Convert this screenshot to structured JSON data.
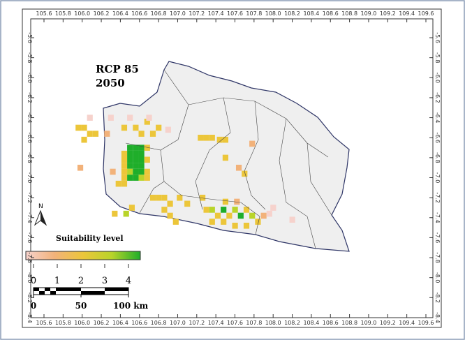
{
  "map": {
    "title": "RCP 85",
    "subtitle": "2050",
    "xticks": [
      105.6,
      105.8,
      {
        "value": 106,
        "label": "106.0"
      },
      106.2,
      106.4,
      106.6,
      106.8,
      {
        "value": 107,
        "label": "107.0"
      },
      107.2,
      107.4,
      107.6,
      107.8,
      {
        "value": 108,
        "label": "108.0"
      },
      108.2,
      108.4,
      108.6,
      108.8,
      {
        "value": 109,
        "label": "109.0"
      },
      109.2,
      109.4,
      109.6
    ],
    "yticks": [
      -5.6,
      -5.8,
      {
        "value": -6,
        "label": "-6.0"
      },
      -6.2,
      -6.4,
      -6.6,
      -6.8,
      {
        "value": -7,
        "label": "-7.0"
      },
      -7.2,
      -7.4,
      -7.6,
      -7.8,
      {
        "value": -8,
        "label": "-8.0"
      },
      -8.2,
      -8.4
    ],
    "cells": [
      [
        106.5,
        -6.7,
        4
      ],
      [
        106.56,
        -6.7,
        4
      ],
      [
        106.62,
        -6.7,
        4
      ],
      [
        106.5,
        -6.76,
        4
      ],
      [
        106.56,
        -6.76,
        4
      ],
      [
        106.62,
        -6.76,
        4
      ],
      [
        106.5,
        -6.82,
        4
      ],
      [
        106.56,
        -6.82,
        4
      ],
      [
        106.62,
        -6.82,
        4
      ],
      [
        106.5,
        -6.88,
        4
      ],
      [
        106.56,
        -6.88,
        4
      ],
      [
        106.62,
        -6.88,
        4
      ],
      [
        106.5,
        -6.94,
        3
      ],
      [
        106.56,
        -6.94,
        4
      ],
      [
        106.62,
        -6.94,
        4
      ],
      [
        106.5,
        -7.0,
        4
      ],
      [
        106.56,
        -7.0,
        4
      ],
      [
        106.62,
        -7.0,
        3
      ],
      [
        106.44,
        -6.76,
        2
      ],
      [
        106.44,
        -6.82,
        2
      ],
      [
        106.44,
        -6.88,
        2
      ],
      [
        106.44,
        -6.94,
        2
      ],
      [
        106.44,
        -7.0,
        2
      ],
      [
        106.44,
        -7.06,
        2
      ],
      [
        106.68,
        -6.7,
        2
      ],
      [
        106.68,
        -6.82,
        2
      ],
      [
        106.68,
        -6.94,
        2
      ],
      [
        106.68,
        -7.0,
        2
      ],
      [
        106.38,
        -7.06,
        2
      ],
      [
        106.32,
        -6.94,
        1
      ],
      [
        105.96,
        -6.5,
        2
      ],
      [
        106.02,
        -6.5,
        2
      ],
      [
        106.08,
        -6.56,
        2
      ],
      [
        106.14,
        -6.56,
        2
      ],
      [
        106.02,
        -6.62,
        2
      ],
      [
        106.26,
        -6.56,
        1
      ],
      [
        106.44,
        -6.5,
        2
      ],
      [
        106.56,
        -6.5,
        2
      ],
      [
        106.62,
        -6.56,
        2
      ],
      [
        106.74,
        -6.56,
        2
      ],
      [
        106.8,
        -6.5,
        2
      ],
      [
        106.68,
        -6.44,
        2
      ],
      [
        106.08,
        -6.4,
        0
      ],
      [
        106.3,
        -6.4,
        0
      ],
      [
        106.5,
        -6.4,
        0
      ],
      [
        106.7,
        -6.4,
        0
      ],
      [
        106.9,
        -6.52,
        0
      ],
      [
        105.98,
        -6.9,
        1
      ],
      [
        106.74,
        -7.2,
        2
      ],
      [
        106.8,
        -7.2,
        2
      ],
      [
        106.86,
        -7.2,
        2
      ],
      [
        106.92,
        -7.26,
        2
      ],
      [
        107.02,
        -7.2,
        2
      ],
      [
        107.1,
        -7.26,
        2
      ],
      [
        106.86,
        -7.32,
        2
      ],
      [
        106.92,
        -7.38,
        2
      ],
      [
        106.98,
        -7.44,
        2
      ],
      [
        106.52,
        -7.3,
        2
      ],
      [
        106.46,
        -7.36,
        3
      ],
      [
        106.34,
        -7.36,
        2
      ],
      [
        107.3,
        -7.32,
        2
      ],
      [
        107.36,
        -7.32,
        3
      ],
      [
        107.42,
        -7.38,
        2
      ],
      [
        107.48,
        -7.32,
        4
      ],
      [
        107.54,
        -7.38,
        2
      ],
      [
        107.6,
        -7.32,
        3
      ],
      [
        107.66,
        -7.38,
        4
      ],
      [
        107.72,
        -7.32,
        2
      ],
      [
        107.78,
        -7.38,
        3
      ],
      [
        107.36,
        -7.44,
        2
      ],
      [
        107.48,
        -7.44,
        2
      ],
      [
        107.6,
        -7.48,
        2
      ],
      [
        107.72,
        -7.48,
        2
      ],
      [
        107.84,
        -7.44,
        2
      ],
      [
        107.9,
        -7.38,
        1
      ],
      [
        107.5,
        -7.24,
        2
      ],
      [
        107.62,
        -7.24,
        1
      ],
      [
        107.26,
        -7.2,
        2
      ],
      [
        107.24,
        -6.6,
        2
      ],
      [
        107.3,
        -6.6,
        2
      ],
      [
        107.36,
        -6.6,
        2
      ],
      [
        107.44,
        -6.62,
        2
      ],
      [
        107.5,
        -6.62,
        2
      ],
      [
        107.5,
        -6.8,
        2
      ],
      [
        107.7,
        -6.96,
        2
      ],
      [
        107.64,
        -6.9,
        1
      ],
      [
        108.0,
        -7.3,
        0
      ],
      [
        107.96,
        -7.36,
        0
      ],
      [
        108.2,
        -7.42,
        0
      ],
      [
        107.78,
        -6.66,
        1
      ]
    ],
    "legend": {
      "title": "Suitability level",
      "colors": [
        "#f6d2cc",
        "#f2b27a",
        "#ecc63a",
        "#b9d42a",
        "#1fae2a"
      ],
      "ticks": [
        0,
        1,
        2,
        3,
        4
      ]
    },
    "scale": {
      "ticks": [
        0,
        50,
        {
          "value": 100,
          "label": "100 km"
        }
      ]
    },
    "north": "N"
  }
}
